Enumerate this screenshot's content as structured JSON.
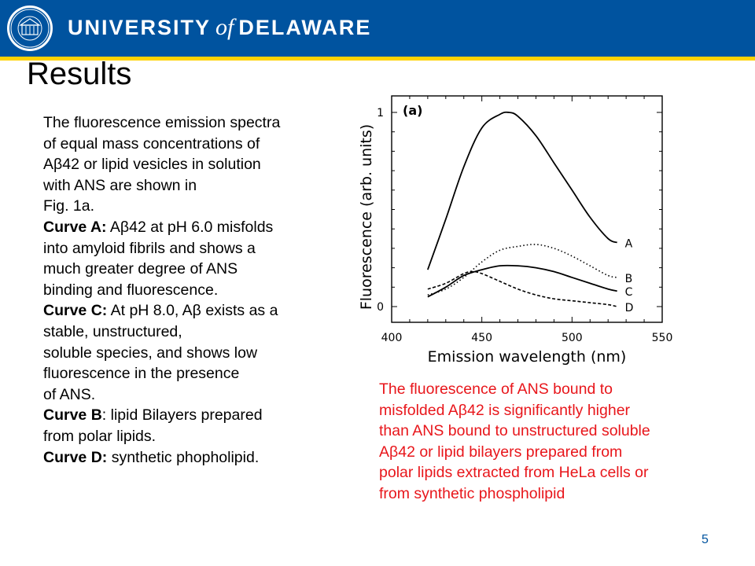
{
  "header": {
    "university_left": "UNIVERSITY",
    "university_of": "of",
    "university_right": "DELAWARE",
    "brand_color": "#00539f",
    "accent_color": "#ffd200",
    "seal_icon": "university-seal-icon"
  },
  "slide": {
    "title": "Results",
    "page_number": "5"
  },
  "left_text": {
    "l1": "The fluorescence emission spectra",
    "l2": "of equal mass concentrations of",
    "l3": "Aβ42 or lipid vesicles in solution",
    "l4": "with ANS are shown in",
    "l5": "Fig. 1a.",
    "curveA_label": "Curve A:",
    "curveA_l1": " Aβ42 at pH 6.0 misfolds",
    "curveA_l2": "into amyloid fibrils and shows a",
    "curveA_l3": "much greater degree of ANS",
    "curveA_l4": "binding and fluorescence.",
    "curveC_label": "Curve C:",
    "curveC_l1": " At pH 8.0, Aβ exists as a",
    "curveC_l2": "stable, unstructured,",
    "curveC_l3": "soluble species, and shows low",
    "curveC_l4": "fluorescence in the presence",
    "curveC_l5": "of ANS.",
    "curveB_label": "Curve B",
    "curveB_l1": ": lipid Bilayers prepared",
    "curveB_l2": "from polar lipids.",
    "curveD_label": "Curve D:",
    "curveD_l1": " synthetic phopholipid."
  },
  "red_text": {
    "l1": "The fluorescence of ANS bound to",
    "l2": "misfolded Aβ42 is significantly higher",
    "l3": "than ANS bound to unstructured soluble",
    "l4": "Aβ42 or lipid bilayers prepared from",
    "l5": "polar lipids extracted from HeLa cells or",
    "l6": "from synthetic phospholipid",
    "color": "#e8161b"
  },
  "chart_data": {
    "type": "line",
    "panel_label": "(a)",
    "xlabel": "Emission wavelength (nm)",
    "ylabel": "Fluorescence (arb. units)",
    "xlim": [
      400,
      550
    ],
    "ylim": [
      0,
      1
    ],
    "xticks": [
      400,
      450,
      500,
      550
    ],
    "yticks": [
      0,
      1
    ],
    "grid": false,
    "series": [
      {
        "name": "A",
        "style": "solid",
        "x": [
          420,
          430,
          440,
          450,
          460,
          465,
          470,
          480,
          490,
          500,
          510,
          520,
          525
        ],
        "y": [
          0.19,
          0.45,
          0.72,
          0.92,
          0.99,
          1.0,
          0.98,
          0.88,
          0.74,
          0.6,
          0.46,
          0.35,
          0.33
        ]
      },
      {
        "name": "B",
        "style": "dotted",
        "x": [
          420,
          430,
          440,
          450,
          460,
          470,
          480,
          490,
          500,
          510,
          520,
          525
        ],
        "y": [
          0.06,
          0.09,
          0.15,
          0.23,
          0.29,
          0.31,
          0.32,
          0.3,
          0.26,
          0.21,
          0.16,
          0.15
        ]
      },
      {
        "name": "C",
        "style": "solid",
        "x": [
          420,
          430,
          440,
          450,
          460,
          470,
          480,
          490,
          500,
          510,
          520,
          525
        ],
        "y": [
          0.05,
          0.1,
          0.16,
          0.19,
          0.21,
          0.21,
          0.2,
          0.18,
          0.15,
          0.12,
          0.09,
          0.08
        ]
      },
      {
        "name": "D",
        "style": "dashed",
        "x": [
          420,
          430,
          440,
          445,
          450,
          460,
          470,
          480,
          490,
          500,
          510,
          520,
          525
        ],
        "y": [
          0.09,
          0.12,
          0.17,
          0.18,
          0.17,
          0.13,
          0.09,
          0.06,
          0.04,
          0.03,
          0.02,
          0.01,
          0.0
        ]
      }
    ]
  }
}
